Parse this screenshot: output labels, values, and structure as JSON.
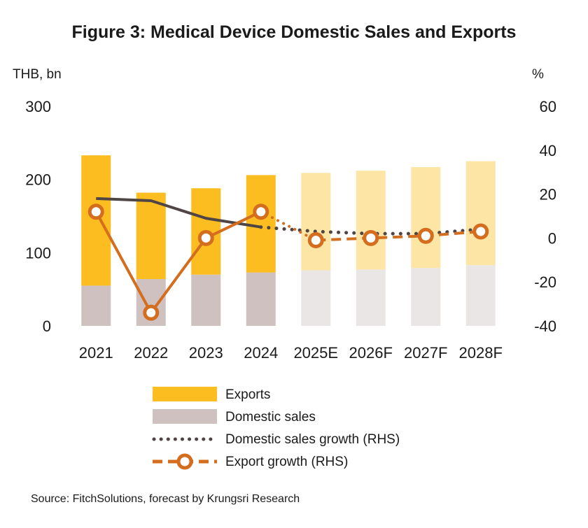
{
  "chart_data": {
    "type": "bar+line",
    "title": "Figure 3:  Medical Device Domestic Sales and Exports",
    "left_axis_label": "THB, bn",
    "right_axis_label": "%",
    "categories": [
      "2021",
      "2022",
      "2023",
      "2024",
      "2025E",
      "2026F",
      "2027F",
      "2028F"
    ],
    "forecast_start_index": 4,
    "left_axis": {
      "min": 0,
      "max": 300,
      "ticks": [
        "300",
        "200",
        "100",
        "0"
      ],
      "tick_values": [
        300,
        200,
        100,
        0
      ]
    },
    "right_axis": {
      "min": -40,
      "max": 60,
      "ticks": [
        "60",
        "40",
        "20",
        "0",
        "-20",
        "-40"
      ],
      "tick_values": [
        60,
        40,
        20,
        0,
        -20,
        -40
      ]
    },
    "series": [
      {
        "name": "Exports",
        "kind": "stacked-bar",
        "axis": "left",
        "values": [
          178,
          118,
          118,
          133,
          133,
          135,
          138,
          142
        ]
      },
      {
        "name": "Domestic sales",
        "kind": "stacked-bar",
        "axis": "left",
        "values": [
          55,
          64,
          70,
          73,
          76,
          77,
          79,
          83
        ]
      },
      {
        "name": "Domestic sales growth (RHS)",
        "kind": "line",
        "axis": "right",
        "values": [
          18,
          17,
          9,
          5,
          3,
          2,
          2,
          4
        ]
      },
      {
        "name": "Export growth (RHS)",
        "kind": "line-marker",
        "axis": "right",
        "values": [
          12,
          -34,
          0,
          12,
          -1,
          0,
          1,
          3
        ]
      }
    ],
    "legend_position": "bottom",
    "grid": false,
    "source": "Source: FitchSolutions, forecast by Krungsri Research"
  },
  "colors": {
    "exports": "#fbbd1f",
    "exports_forecast": "#fde6a5",
    "domestic": "#cfc1bf",
    "domestic_forecast": "#eae6e5",
    "domestic_growth_line": "#4f4544",
    "export_growth_line": "#d46d1e",
    "text": "#1a1a1a"
  }
}
